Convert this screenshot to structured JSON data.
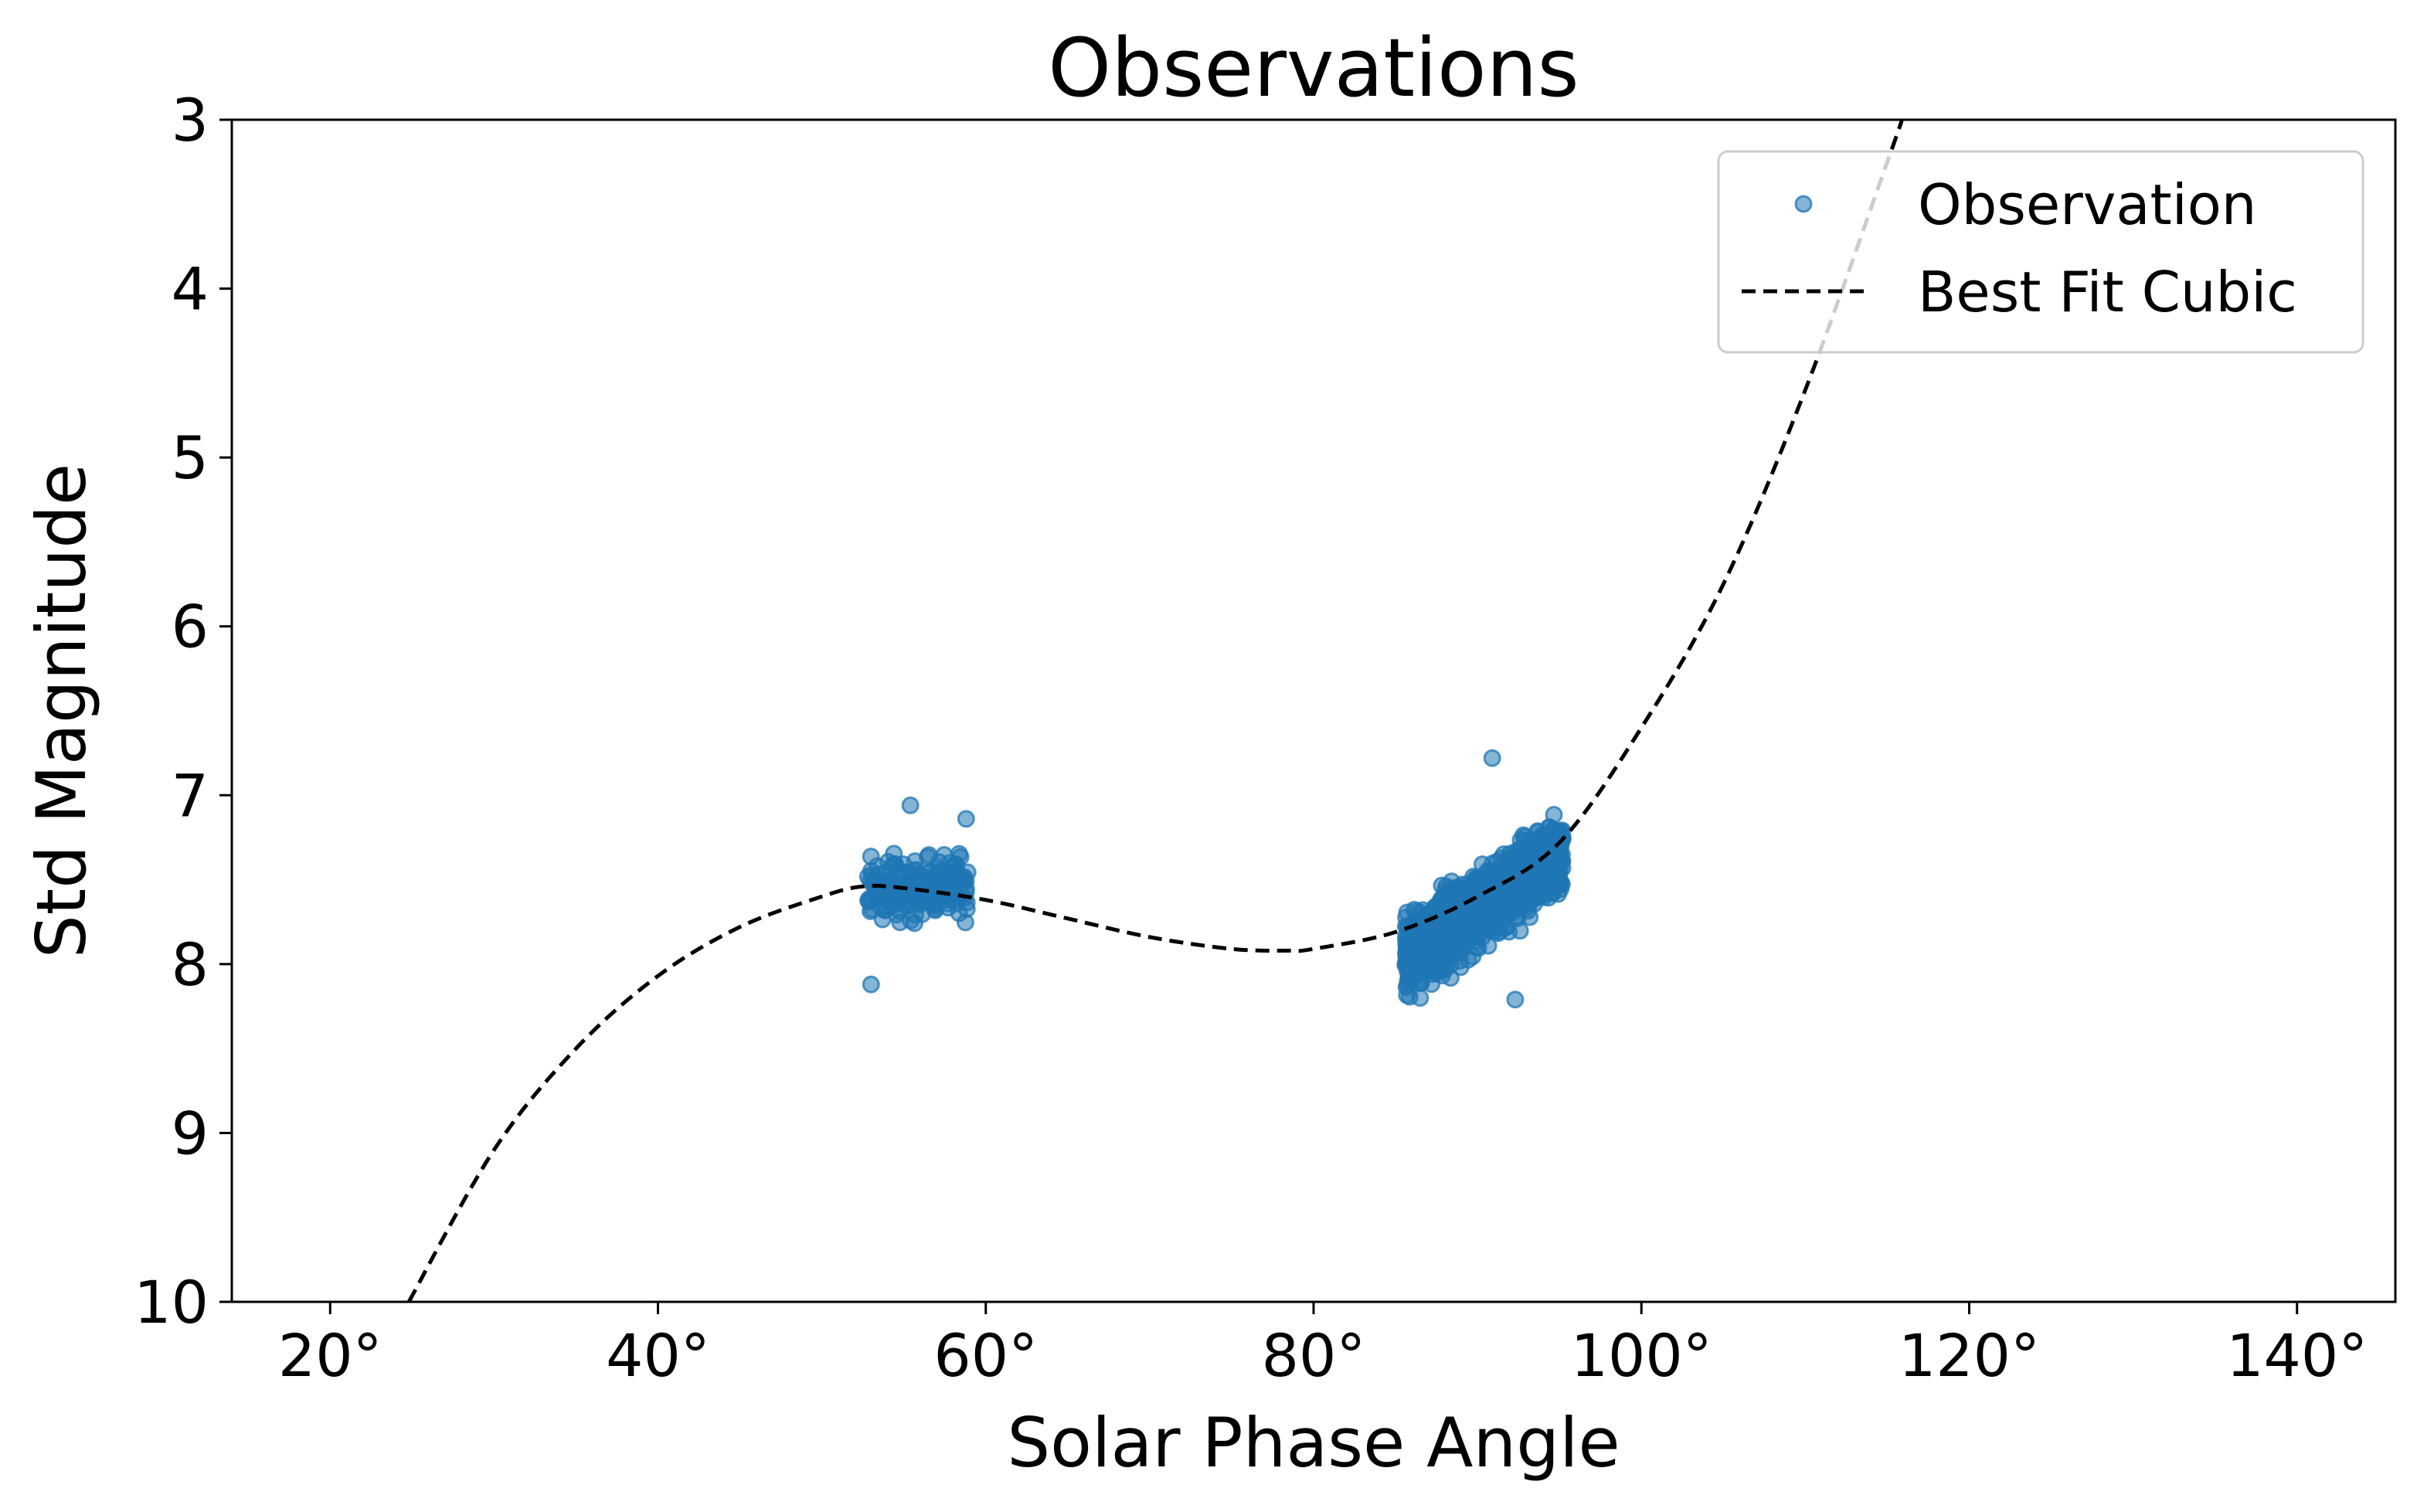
{
  "chart_data": {
    "type": "scatter",
    "title": "Observations",
    "xlabel": "Solar Phase Angle",
    "ylabel": "Std Magnitude",
    "xlim": [
      14,
      146
    ],
    "ylim": [
      10,
      3
    ],
    "y_inverted": true,
    "x_ticks": [
      20,
      40,
      60,
      80,
      100,
      120,
      140
    ],
    "x_tick_labels": [
      "20°",
      "40°",
      "60°",
      "80°",
      "100°",
      "120°",
      "140°"
    ],
    "y_ticks": [
      3,
      4,
      5,
      6,
      7,
      8,
      9,
      10
    ],
    "y_tick_labels": [
      "3",
      "4",
      "5",
      "6",
      "7",
      "8",
      "9",
      "10"
    ],
    "grid": false,
    "legend_position": "top-right",
    "series": [
      {
        "name": "Observation",
        "kind": "scatter",
        "color": "#1f77b4",
        "alpha": 0.55,
        "clusters": [
          {
            "x_range": [
              52.8,
              58.9
            ],
            "y_center": 7.55,
            "y_spread": 0.16,
            "n": 180
          },
          {
            "x_range": [
              85.6,
              95.2
            ],
            "y_center_at_xmin": 7.95,
            "y_center_at_xmax": 7.35,
            "y_spread": 0.19,
            "n": 1200
          }
        ],
        "extremes": [
          {
            "x": 53.0,
            "y": 8.12
          },
          {
            "x": 55.4,
            "y": 7.06
          },
          {
            "x": 58.8,
            "y": 7.14
          },
          {
            "x": 90.9,
            "y": 6.78
          },
          {
            "x": 92.3,
            "y": 8.21
          },
          {
            "x": 86.5,
            "y": 8.2
          }
        ]
      },
      {
        "name": "Best Fit Cubic",
        "kind": "line",
        "style": "dashed",
        "color": "#000000",
        "x": [
          24.8,
          30,
          35,
          40,
          45,
          50,
          52.5,
          55,
          60,
          65,
          70,
          75,
          78.5,
          80,
          85,
          90,
          95,
          100,
          105,
          110,
          115,
          115.9
        ],
        "y": [
          10.0,
          9.1,
          8.5,
          8.07,
          7.78,
          7.6,
          7.54,
          7.55,
          7.62,
          7.73,
          7.84,
          7.91,
          7.92,
          7.91,
          7.81,
          7.6,
          7.28,
          6.6,
          5.75,
          4.6,
          3.25,
          3.0
        ]
      }
    ]
  }
}
